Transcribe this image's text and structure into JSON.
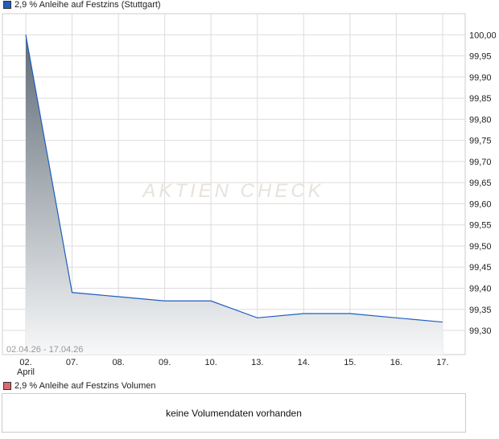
{
  "chart_data": {
    "type": "area",
    "title": "2,9 % Anleihe auf Festzins (Stuttgart)",
    "categories": [
      "02.",
      "07.",
      "08.",
      "09.",
      "10.",
      "13.",
      "14.",
      "15.",
      "16.",
      "17."
    ],
    "x_sublabel": "April",
    "values": [
      100.0,
      99.39,
      99.38,
      99.37,
      99.37,
      99.33,
      99.34,
      99.34,
      99.33,
      99.32
    ],
    "yticks": [
      "99,30",
      "99,35",
      "99,40",
      "99,45",
      "99,50",
      "99,55",
      "99,60",
      "99,65",
      "99,70",
      "99,75",
      "99,80",
      "99,85",
      "99,90",
      "99,95",
      "100,00"
    ],
    "ylim": [
      99.243,
      100.05
    ],
    "date_range": "02.04.26 - 17.04.26",
    "grid": true,
    "y_axis": "right",
    "line_color": "#1f5fbf",
    "fill_top_color": "#5f6b76",
    "fill_bottom_color": "#f7f8f9"
  },
  "watermark": "AKTIEN CHECK",
  "volume": {
    "title": "2,9 % Anleihe auf Festzins Volumen",
    "message": "keine Volumendaten vorhanden",
    "swatch_color": "#d96b6b"
  }
}
